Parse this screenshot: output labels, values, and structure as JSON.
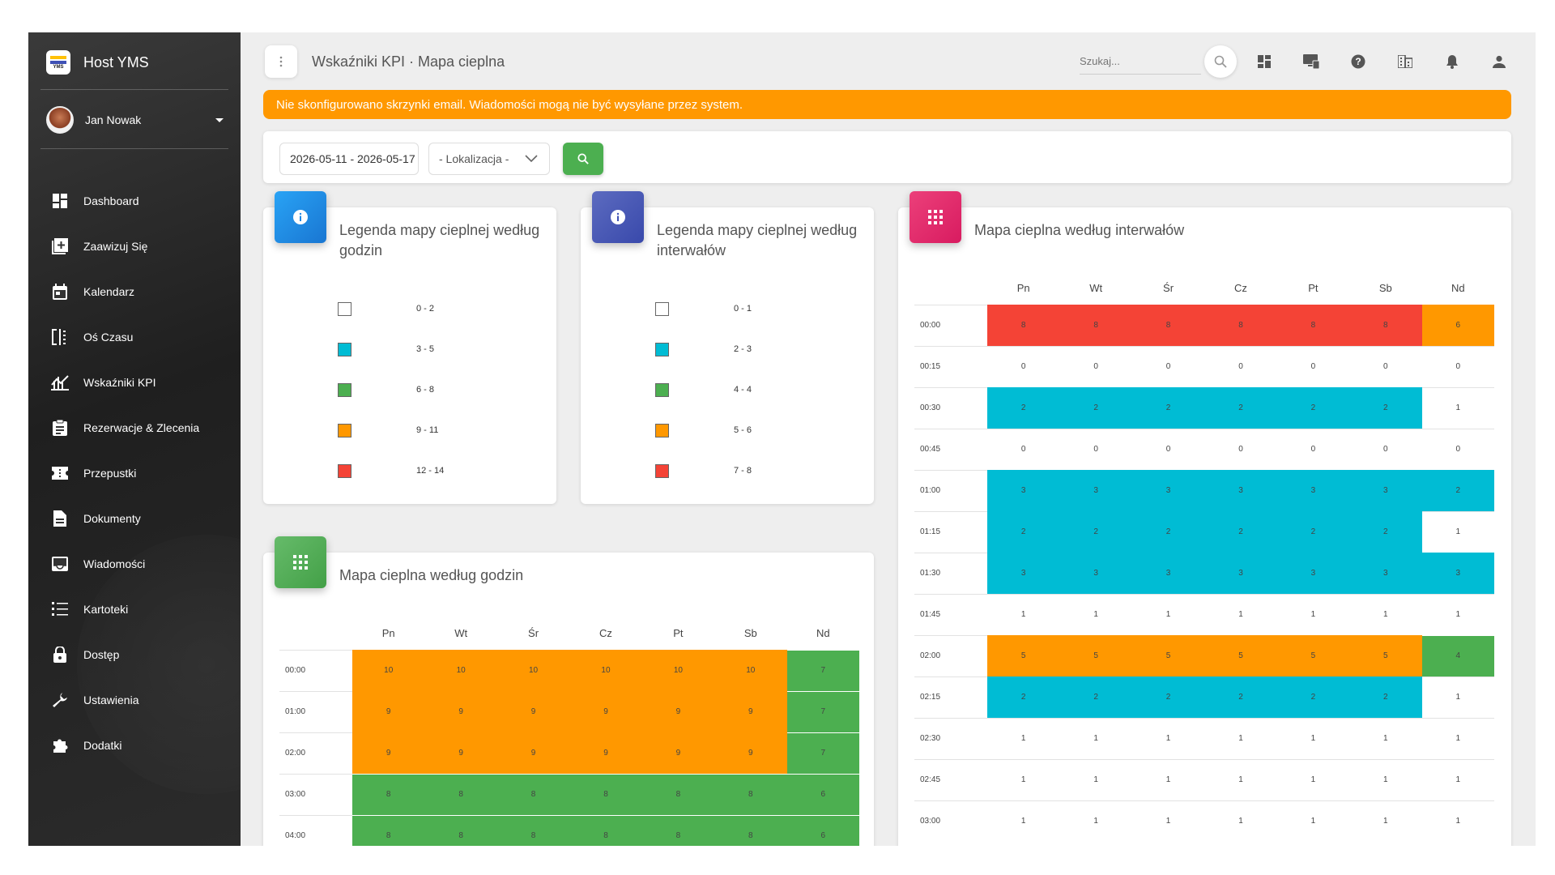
{
  "app": {
    "name": "Host YMS",
    "logo_text": "YMS",
    "user_name": "Jan Nowak"
  },
  "sidebar": {
    "items": [
      {
        "label": "Dashboard",
        "icon": "dashboard-icon"
      },
      {
        "label": "Zaawizuj Się",
        "icon": "add-box-icon"
      },
      {
        "label": "Kalendarz",
        "icon": "calendar-icon"
      },
      {
        "label": "Oś Czasu",
        "icon": "timeline-icon"
      },
      {
        "label": "Wskaźniki KPI",
        "icon": "kpi-chart-icon"
      },
      {
        "label": "Rezerwacje & Zlecenia",
        "icon": "clipboard-icon"
      },
      {
        "label": "Przepustki",
        "icon": "ticket-icon"
      },
      {
        "label": "Dokumenty",
        "icon": "document-icon"
      },
      {
        "label": "Wiadomości",
        "icon": "inbox-icon"
      },
      {
        "label": "Kartoteki",
        "icon": "list-icon"
      },
      {
        "label": "Dostęp",
        "icon": "lock-icon"
      },
      {
        "label": "Ustawienia",
        "icon": "wrench-icon"
      },
      {
        "label": "Dodatki",
        "icon": "puzzle-icon"
      }
    ]
  },
  "header": {
    "breadcrumb": "Wskaźniki KPI · Mapa cieplna",
    "search_placeholder": "Szukaj...",
    "icons": [
      "dashboard-icon",
      "monitor-icon",
      "help-icon",
      "building-icon",
      "bell-icon",
      "person-icon"
    ]
  },
  "alert": {
    "text": "Nie skonfigurowano skrzynki email. Wiadomości mogą nie być wysyłane przez system."
  },
  "filters": {
    "date_range": "2026-05-11 - 2026-05-17",
    "location": "- Lokalizacja -"
  },
  "colors": {
    "white": "#ffffff",
    "cyan": "#00bcd4",
    "green": "#4caf50",
    "orange": "#ff9800",
    "red": "#f44336",
    "alert": "#ff9800",
    "icon_blue": "#2196f3",
    "icon_indigo": "#3f51b5",
    "icon_pink": "#e91e63",
    "icon_green": "#4caf50"
  },
  "legend_hours": {
    "title": "Legenda mapy cieplnej według godzin",
    "items": [
      {
        "label": "0 - 2",
        "color": "#ffffff"
      },
      {
        "label": "3 - 5",
        "color": "#00bcd4"
      },
      {
        "label": "6 - 8",
        "color": "#4caf50"
      },
      {
        "label": "9 - 11",
        "color": "#ff9800"
      },
      {
        "label": "12 - 14",
        "color": "#f44336"
      }
    ]
  },
  "legend_intervals": {
    "title": "Legenda mapy cieplnej według interwałów",
    "items": [
      {
        "label": "0 - 1",
        "color": "#ffffff"
      },
      {
        "label": "2 - 3",
        "color": "#00bcd4"
      },
      {
        "label": "4 - 4",
        "color": "#4caf50"
      },
      {
        "label": "5 - 6",
        "color": "#ff9800"
      },
      {
        "label": "7 - 8",
        "color": "#f44336"
      }
    ]
  },
  "heatmap_hours": {
    "title": "Mapa cieplna według godzin",
    "days": [
      "Pn",
      "Wt",
      "Śr",
      "Cz",
      "Pt",
      "Sb",
      "Nd"
    ],
    "rows": [
      {
        "time": "00:00",
        "values": [
          10,
          10,
          10,
          10,
          10,
          10,
          7
        ]
      },
      {
        "time": "01:00",
        "values": [
          9,
          9,
          9,
          9,
          9,
          9,
          7
        ]
      },
      {
        "time": "02:00",
        "values": [
          9,
          9,
          9,
          9,
          9,
          9,
          7
        ]
      },
      {
        "time": "03:00",
        "values": [
          8,
          8,
          8,
          8,
          8,
          8,
          6
        ]
      },
      {
        "time": "04:00",
        "values": [
          8,
          8,
          8,
          8,
          8,
          8,
          6
        ]
      }
    ]
  },
  "heatmap_intervals": {
    "title": "Mapa cieplna według interwałów",
    "days": [
      "Pn",
      "Wt",
      "Śr",
      "Cz",
      "Pt",
      "Sb",
      "Nd"
    ],
    "rows": [
      {
        "time": "00:00",
        "values": [
          8,
          8,
          8,
          8,
          8,
          8,
          6
        ]
      },
      {
        "time": "00:15",
        "values": [
          0,
          0,
          0,
          0,
          0,
          0,
          0
        ]
      },
      {
        "time": "00:30",
        "values": [
          2,
          2,
          2,
          2,
          2,
          2,
          1
        ]
      },
      {
        "time": "00:45",
        "values": [
          0,
          0,
          0,
          0,
          0,
          0,
          0
        ]
      },
      {
        "time": "01:00",
        "values": [
          3,
          3,
          3,
          3,
          3,
          3,
          2
        ]
      },
      {
        "time": "01:15",
        "values": [
          2,
          2,
          2,
          2,
          2,
          2,
          1
        ]
      },
      {
        "time": "01:30",
        "values": [
          3,
          3,
          3,
          3,
          3,
          3,
          3
        ]
      },
      {
        "time": "01:45",
        "values": [
          1,
          1,
          1,
          1,
          1,
          1,
          1
        ]
      },
      {
        "time": "02:00",
        "values": [
          5,
          5,
          5,
          5,
          5,
          5,
          4
        ]
      },
      {
        "time": "02:15",
        "values": [
          2,
          2,
          2,
          2,
          2,
          2,
          1
        ]
      },
      {
        "time": "02:30",
        "values": [
          1,
          1,
          1,
          1,
          1,
          1,
          1
        ]
      },
      {
        "time": "02:45",
        "values": [
          1,
          1,
          1,
          1,
          1,
          1,
          1
        ]
      },
      {
        "time": "03:00",
        "values": [
          1,
          1,
          1,
          1,
          1,
          1,
          1
        ]
      }
    ]
  }
}
